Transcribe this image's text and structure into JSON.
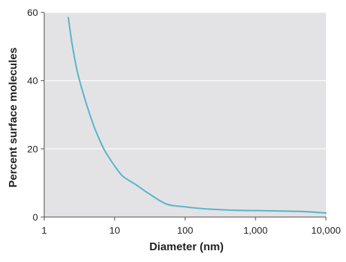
{
  "chart_data": {
    "type": "line",
    "title": "",
    "xlabel": "Diameter (nm)",
    "ylabel": "Percent surface molecules",
    "x_scale": "log",
    "xlim": [
      1,
      10000
    ],
    "ylim": [
      0,
      60
    ],
    "x_ticks": [
      1,
      10,
      100,
      1000,
      10000
    ],
    "x_tick_labels": [
      "1",
      "10",
      "100",
      "1,000",
      "10,000"
    ],
    "y_ticks": [
      0,
      20,
      40,
      60
    ],
    "y_tick_labels": [
      "0",
      "20",
      "40",
      "60"
    ],
    "grid": "horizontal",
    "legend": "none",
    "series": [
      {
        "x": [
          2.2,
          2.5,
          3,
          4,
          5,
          6,
          7,
          8,
          10,
          13,
          20,
          30,
          55,
          100,
          200,
          500,
          1000,
          2000,
          5000,
          10000
        ],
        "y": [
          58.5,
          50.5,
          42,
          33,
          27,
          23,
          20,
          18,
          15,
          12,
          9.5,
          7,
          3.8,
          3,
          2.4,
          2,
          1.9,
          1.8,
          1.6,
          1.2
        ]
      }
    ],
    "colors": {
      "plot_background": "#e3e3e6",
      "gridline": "#ffffff",
      "line": "#5bb6c8",
      "axis": "#444444"
    }
  }
}
